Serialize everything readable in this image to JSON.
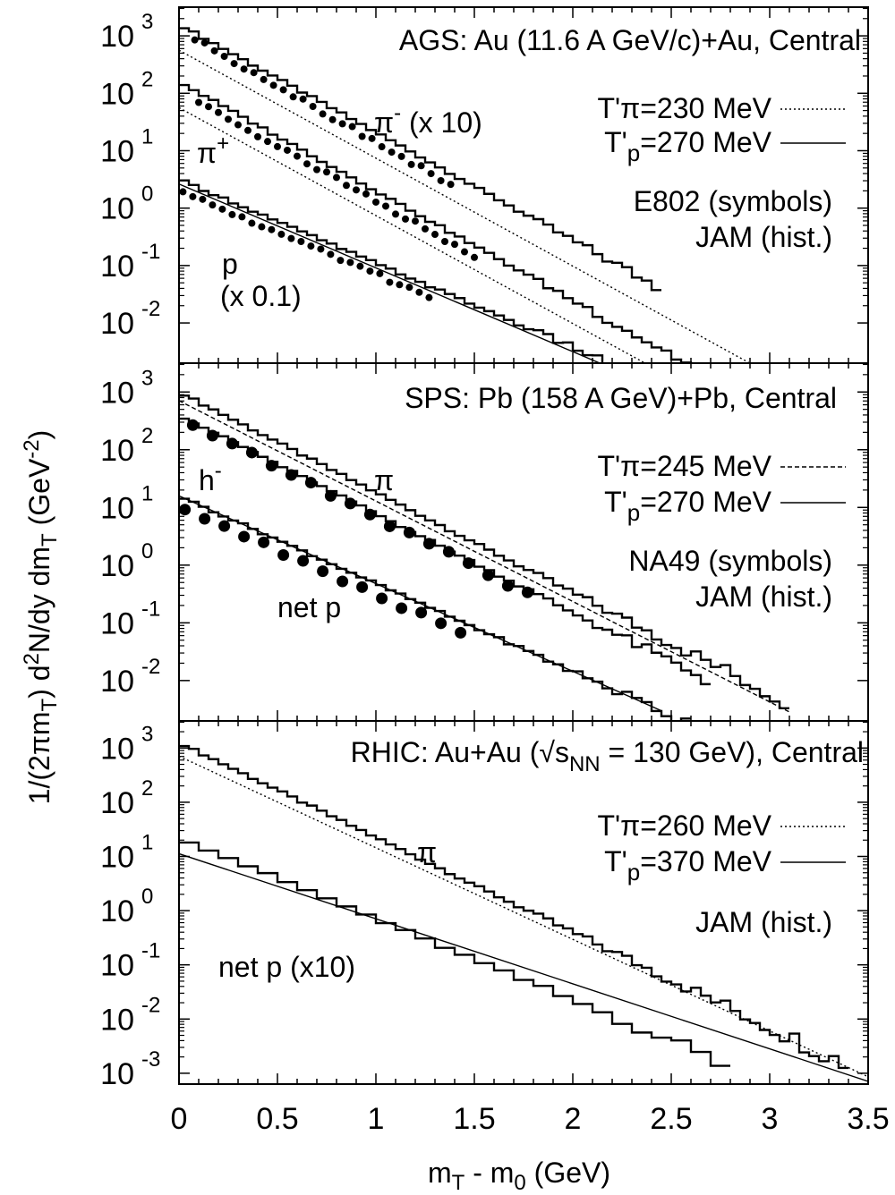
{
  "figure": {
    "ylabel": "1/(2πm_T) d²N/dy dm_T (GeV⁻²)",
    "ylabel_parts": {
      "a": "1/(2πm",
      "b": "T",
      "c": ") d",
      "d": "2",
      "e": "N/dy dm",
      "f": "T",
      "g": " (GeV",
      "h": "-2",
      "i": ")"
    },
    "xlabel_parts": {
      "a": "m",
      "b": "T",
      "c": " - m",
      "d": "0",
      "e": " (GeV)"
    },
    "xticks": [
      "0",
      "0.5",
      "1",
      "1.5",
      "2",
      "2.5",
      "3",
      "3.5"
    ],
    "xlim": [
      0,
      3.5
    ]
  },
  "chart_data": [
    {
      "type": "line",
      "panel": "AGS",
      "title": "AGS: Au (11.6 A GeV/c)+Au, Central",
      "yscale": "log",
      "ylim_log10": [
        -2.7,
        3.5
      ],
      "yticks": [
        {
          "base": "10",
          "exp": "3"
        },
        {
          "base": "10",
          "exp": "2"
        },
        {
          "base": "10",
          "exp": "1"
        },
        {
          "base": "10",
          "exp": "0"
        },
        {
          "base": "10",
          "exp": "-1"
        },
        {
          "base": "10",
          "exp": "-2"
        }
      ],
      "legend": [
        {
          "pre": "T'",
          "sub": "π",
          "post": "=230 MeV",
          "style": "dotted"
        },
        {
          "pre": "T'",
          "sub": "p",
          "post": "=270 MeV",
          "style": "solid"
        }
      ],
      "notes": [
        "E802 (symbols)",
        "JAM (hist.)"
      ],
      "labels": [
        {
          "text": "π",
          "sup": "-",
          "tail": " (x 10)"
        },
        {
          "text": "π",
          "sup": "+",
          "tail": ""
        },
        {
          "text": "p",
          "sup": "",
          "tail": ""
        },
        {
          "text": "(x 0.1)",
          "sup": "",
          "tail": ""
        }
      ],
      "series": [
        {
          "name": "π⁻ (x 10)",
          "mode": "hist",
          "y0_log10": 3.2,
          "slope_log10": -1.88,
          "x_end": 2.45
        },
        {
          "name": "π⁻ (x 10)",
          "mode": "fit-dotted",
          "y0_log10": 2.75,
          "slope_log10": -1.88,
          "x_end": 3.5
        },
        {
          "name": "π⁻ (x 10)",
          "mode": "points",
          "y0_log10": 3.1,
          "slope_log10": -1.95,
          "x_start": 0.08,
          "x_end": 1.4
        },
        {
          "name": "π⁺",
          "mode": "hist",
          "y0_log10": 2.2,
          "slope_log10": -1.9,
          "x_end": 3.1
        },
        {
          "name": "π⁺",
          "mode": "fit-dotted",
          "y0_log10": 1.75,
          "slope_log10": -1.88,
          "x_end": 2.9
        },
        {
          "name": "π⁺",
          "mode": "points",
          "y0_log10": 2.05,
          "slope_log10": -1.93,
          "x_start": 0.1,
          "x_end": 1.5
        },
        {
          "name": "p (x 0.1)",
          "mode": "hist",
          "y0_log10": 0.5,
          "slope_log10": -1.46,
          "x_end": 2.2
        },
        {
          "name": "p (x 0.1)",
          "mode": "fit-solid",
          "y0_log10": 0.42,
          "slope_log10": -1.46,
          "x_end": 2.2
        },
        {
          "name": "p (x 0.1)",
          "mode": "points",
          "y0_log10": 0.3,
          "slope_log10": -1.45,
          "x_start": 0.02,
          "x_end": 1.3
        }
      ]
    },
    {
      "type": "line",
      "panel": "SPS",
      "title": "SPS: Pb (158 A GeV)+Pb, Central",
      "yscale": "log",
      "ylim_log10": [
        -2.7,
        3.5
      ],
      "yticks": [
        {
          "base": "10",
          "exp": "3"
        },
        {
          "base": "10",
          "exp": "2"
        },
        {
          "base": "10",
          "exp": "1"
        },
        {
          "base": "10",
          "exp": "0"
        },
        {
          "base": "10",
          "exp": "-1"
        },
        {
          "base": "10",
          "exp": "-2"
        }
      ],
      "legend": [
        {
          "pre": "T'",
          "sub": "π",
          "post": "=245 MeV",
          "style": "dashed"
        },
        {
          "pre": "T'",
          "sub": "p",
          "post": "=270 MeV",
          "style": "solid"
        }
      ],
      "notes": [
        "NA49 (symbols)",
        "JAM (hist.)"
      ],
      "labels": [
        {
          "text": "h",
          "sup": "-",
          "tail": ""
        },
        {
          "text": "π",
          "sup": "",
          "tail": ""
        },
        {
          "text": "net p",
          "sup": "",
          "tail": ""
        }
      ],
      "series": [
        {
          "name": "π",
          "mode": "hist",
          "y0_log10": 3.0,
          "slope_log10": -1.74,
          "x_end": 3.1
        },
        {
          "name": "π",
          "mode": "fit-dashed",
          "y0_log10": 2.85,
          "slope_log10": -1.74,
          "x_end": 3.1
        },
        {
          "name": "h⁻",
          "mode": "hist",
          "y0_log10": 2.6,
          "slope_log10": -1.71,
          "x_end": 2.7
        },
        {
          "name": "h⁻",
          "mode": "points",
          "y0_log10": 2.55,
          "slope_log10": -1.72,
          "x_start": 0.07,
          "x_end": 1.85
        },
        {
          "name": "net p",
          "mode": "hist",
          "y0_log10": 1.2,
          "slope_log10": -1.52,
          "x_end": 2.6
        },
        {
          "name": "net p",
          "mode": "fit-solid",
          "y0_log10": 1.2,
          "slope_log10": -1.52,
          "x_end": 2.45
        },
        {
          "name": "net p",
          "mode": "points",
          "y0_log10": 1.02,
          "slope_log10": -1.53,
          "x_start": 0.03,
          "x_end": 1.52
        }
      ]
    },
    {
      "type": "line",
      "panel": "RHIC",
      "title": "RHIC: Au+Au (√s_NN = 130 GeV), Central",
      "title_parts": {
        "a": "RHIC: Au+Au (√s",
        "b": "NN",
        "c": " = 130 GeV), Central"
      },
      "yscale": "log",
      "ylim_log10": [
        -3.2,
        3.5
      ],
      "yticks": [
        {
          "base": "10",
          "exp": "3"
        },
        {
          "base": "10",
          "exp": "2"
        },
        {
          "base": "10",
          "exp": "1"
        },
        {
          "base": "10",
          "exp": "0"
        },
        {
          "base": "10",
          "exp": "-1"
        },
        {
          "base": "10",
          "exp": "-2"
        },
        {
          "base": "10",
          "exp": "-3"
        }
      ],
      "legend": [
        {
          "pre": "T'",
          "sub": "π",
          "post": "=260 MeV",
          "style": "dotted"
        },
        {
          "pre": "T'",
          "sub": "p",
          "post": "=370 MeV",
          "style": "solid"
        }
      ],
      "notes": [
        "JAM (hist.)"
      ],
      "labels": [
        {
          "text": "π",
          "sup": "",
          "tail": ""
        },
        {
          "text": "net p (x10)",
          "sup": "",
          "tail": ""
        }
      ],
      "series": [
        {
          "name": "π",
          "mode": "hist",
          "y0_log10": 3.1,
          "slope_log10": -1.75,
          "x_end": 3.42
        },
        {
          "name": "π",
          "mode": "fit-dotted",
          "y0_log10": 2.85,
          "slope_log10": -1.69,
          "x_end": 3.5
        },
        {
          "name": "net p (x10)",
          "mode": "hist",
          "y0_log10": 1.35,
          "slope_log10": -1.5,
          "x_end": 2.8
        },
        {
          "name": "net p (x10)",
          "mode": "fit-solid",
          "y0_log10": 1.05,
          "slope_log10": -1.2,
          "x_end": 3.5
        }
      ]
    }
  ]
}
